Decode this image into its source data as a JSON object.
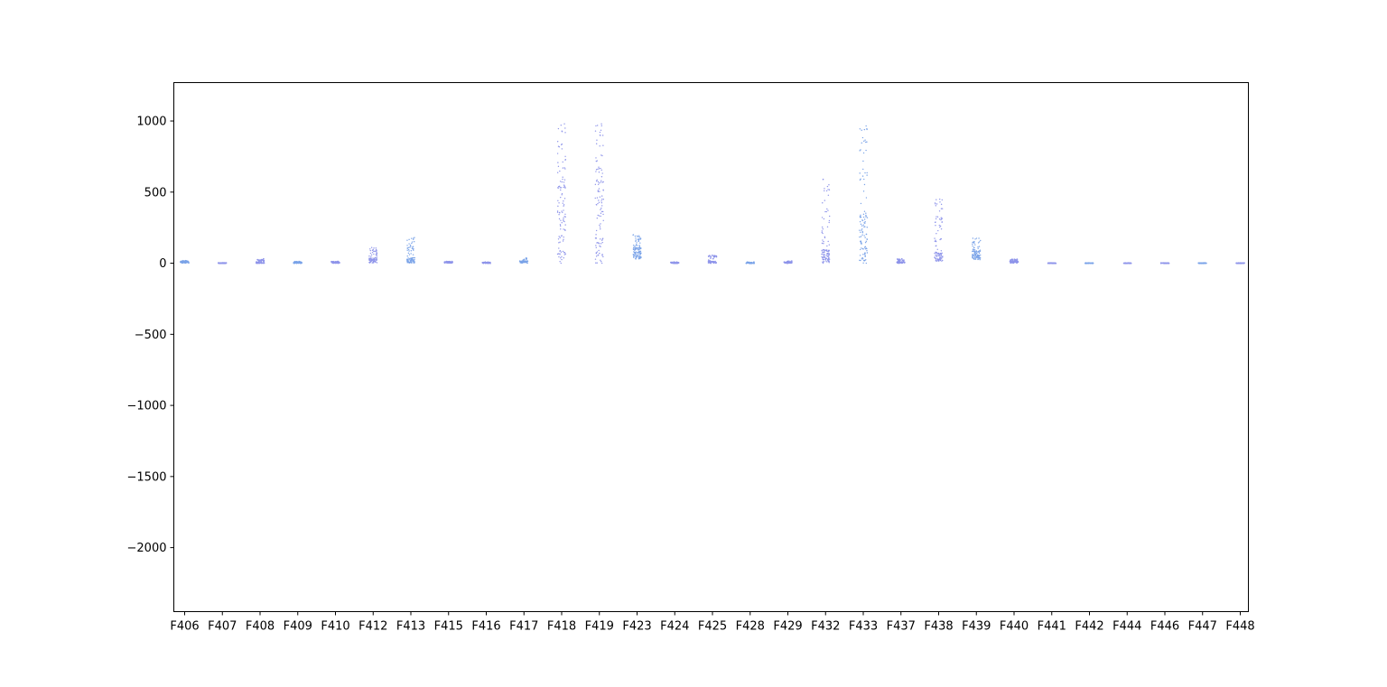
{
  "chart_data": {
    "type": "scatter",
    "title": "",
    "xlabel": "",
    "ylabel": "",
    "categories": [
      "F406",
      "F407",
      "F408",
      "F409",
      "F410",
      "F412",
      "F413",
      "F415",
      "F416",
      "F417",
      "F418",
      "F419",
      "F423",
      "F424",
      "F425",
      "F428",
      "F429",
      "F432",
      "F433",
      "F437",
      "F438",
      "F439",
      "F440",
      "F441",
      "F442",
      "F444",
      "F446",
      "F447",
      "F448"
    ],
    "ylim": [
      -2450,
      1270
    ],
    "yticks": [
      1000,
      500,
      0,
      -500,
      -1000,
      -1500,
      -2000
    ],
    "ytick_labels": [
      "1000",
      "500",
      "0",
      "−500",
      "−1000",
      "−1500",
      "−2000"
    ],
    "grid": false,
    "point_color": "#8f95ea",
    "point_color_alt": "#7aa3e8",
    "distributions": [
      {
        "category": "F406",
        "min": 2,
        "max": 18,
        "median": 10,
        "n": 60
      },
      {
        "category": "F407",
        "min": -1,
        "max": 3,
        "median": 0,
        "n": 40
      },
      {
        "category": "F408",
        "min": 0,
        "max": 30,
        "median": 6,
        "n": 40
      },
      {
        "category": "F409",
        "min": 0,
        "max": 12,
        "median": 4,
        "n": 40
      },
      {
        "category": "F410",
        "min": 0,
        "max": 12,
        "median": 5,
        "n": 40
      },
      {
        "category": "F412",
        "min": 3,
        "max": 110,
        "median": 25,
        "n": 90
      },
      {
        "category": "F413",
        "min": 2,
        "max": 180,
        "median": 25,
        "n": 90
      },
      {
        "category": "F415",
        "min": 2,
        "max": 12,
        "median": 6,
        "n": 40
      },
      {
        "category": "F416",
        "min": -1,
        "max": 8,
        "median": 3,
        "n": 40
      },
      {
        "category": "F417",
        "min": 2,
        "max": 35,
        "median": 10,
        "n": 40
      },
      {
        "category": "F418",
        "min": 0,
        "max": 980,
        "median": 380,
        "n": 110
      },
      {
        "category": "F419",
        "min": 0,
        "max": 980,
        "median": 420,
        "n": 110
      },
      {
        "category": "F423",
        "min": 30,
        "max": 200,
        "median": 80,
        "n": 110
      },
      {
        "category": "F424",
        "min": -1,
        "max": 8,
        "median": 2,
        "n": 40
      },
      {
        "category": "F425",
        "min": 0,
        "max": 55,
        "median": 8,
        "n": 40
      },
      {
        "category": "F428",
        "min": -1,
        "max": 8,
        "median": 2,
        "n": 40
      },
      {
        "category": "F429",
        "min": 0,
        "max": 15,
        "median": 4,
        "n": 40
      },
      {
        "category": "F432",
        "min": 0,
        "max": 590,
        "median": 60,
        "n": 110
      },
      {
        "category": "F433",
        "min": 0,
        "max": 965,
        "median": 220,
        "n": 110
      },
      {
        "category": "F437",
        "min": 0,
        "max": 30,
        "median": 5,
        "n": 40
      },
      {
        "category": "F438",
        "min": 15,
        "max": 450,
        "median": 55,
        "n": 100
      },
      {
        "category": "F439",
        "min": 25,
        "max": 175,
        "median": 65,
        "n": 100
      },
      {
        "category": "F440",
        "min": 2,
        "max": 28,
        "median": 12,
        "n": 60
      },
      {
        "category": "F441",
        "min": -1,
        "max": 2,
        "median": 0,
        "n": 30
      },
      {
        "category": "F442",
        "min": -1,
        "max": 2,
        "median": 0,
        "n": 30
      },
      {
        "category": "F444",
        "min": -1,
        "max": 2,
        "median": 0,
        "n": 30
      },
      {
        "category": "F446",
        "min": -1,
        "max": 2,
        "median": 0,
        "n": 30
      },
      {
        "category": "F447",
        "min": -1,
        "max": 2,
        "median": 0,
        "n": 30
      },
      {
        "category": "F448",
        "min": -1,
        "max": 2,
        "median": 0,
        "n": 30
      }
    ]
  }
}
